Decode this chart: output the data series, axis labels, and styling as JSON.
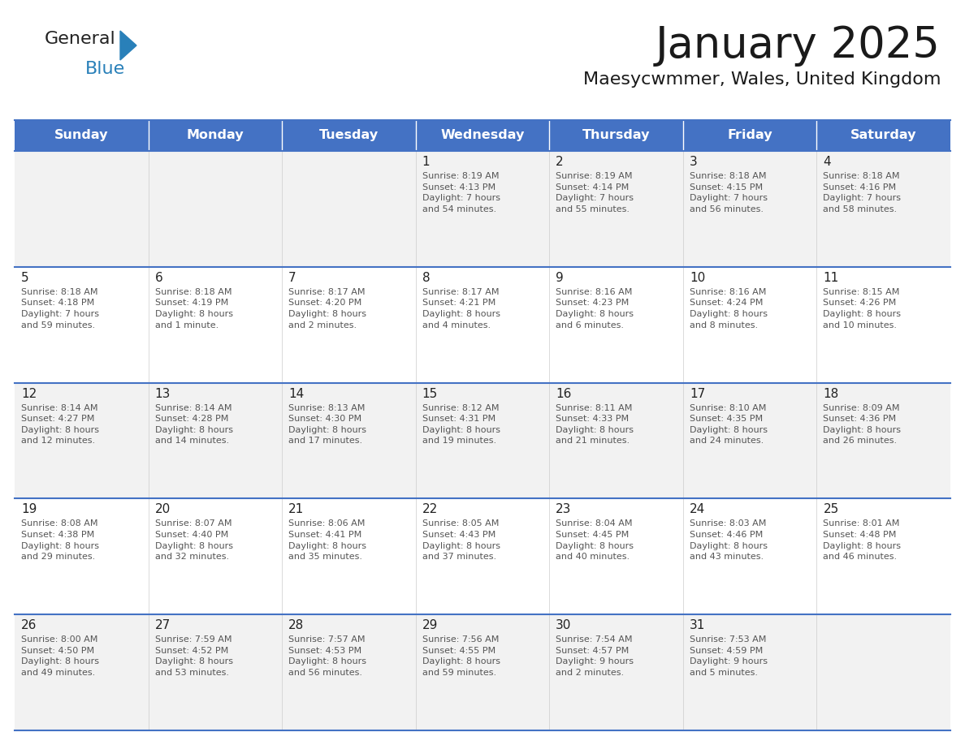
{
  "title": "January 2025",
  "subtitle": "Maesycwmmer, Wales, United Kingdom",
  "days_of_week": [
    "Sunday",
    "Monday",
    "Tuesday",
    "Wednesday",
    "Thursday",
    "Friday",
    "Saturday"
  ],
  "header_bg": "#4472C4",
  "header_text": "#FFFFFF",
  "cell_bg_row0": "#F2F2F2",
  "cell_bg_row1": "#FFFFFF",
  "cell_bg_row2": "#F2F2F2",
  "cell_bg_row3": "#FFFFFF",
  "cell_bg_row4": "#F2F2F2",
  "cell_line_color": "#4472C4",
  "title_color": "#1a1a1a",
  "subtitle_color": "#1a1a1a",
  "day_number_color": "#222222",
  "cell_text_color": "#555555",
  "logo_color_general": "#222222",
  "logo_color_blue": "#2980B9",
  "logo_triangle_color": "#2980B9",
  "calendar_data": [
    [
      null,
      null,
      null,
      {
        "day": 1,
        "sunrise": "8:19 AM",
        "sunset": "4:13 PM",
        "daylight": "7 hours\nand 54 minutes."
      },
      {
        "day": 2,
        "sunrise": "8:19 AM",
        "sunset": "4:14 PM",
        "daylight": "7 hours\nand 55 minutes."
      },
      {
        "day": 3,
        "sunrise": "8:18 AM",
        "sunset": "4:15 PM",
        "daylight": "7 hours\nand 56 minutes."
      },
      {
        "day": 4,
        "sunrise": "8:18 AM",
        "sunset": "4:16 PM",
        "daylight": "7 hours\nand 58 minutes."
      }
    ],
    [
      {
        "day": 5,
        "sunrise": "8:18 AM",
        "sunset": "4:18 PM",
        "daylight": "7 hours\nand 59 minutes."
      },
      {
        "day": 6,
        "sunrise": "8:18 AM",
        "sunset": "4:19 PM",
        "daylight": "8 hours\nand 1 minute."
      },
      {
        "day": 7,
        "sunrise": "8:17 AM",
        "sunset": "4:20 PM",
        "daylight": "8 hours\nand 2 minutes."
      },
      {
        "day": 8,
        "sunrise": "8:17 AM",
        "sunset": "4:21 PM",
        "daylight": "8 hours\nand 4 minutes."
      },
      {
        "day": 9,
        "sunrise": "8:16 AM",
        "sunset": "4:23 PM",
        "daylight": "8 hours\nand 6 minutes."
      },
      {
        "day": 10,
        "sunrise": "8:16 AM",
        "sunset": "4:24 PM",
        "daylight": "8 hours\nand 8 minutes."
      },
      {
        "day": 11,
        "sunrise": "8:15 AM",
        "sunset": "4:26 PM",
        "daylight": "8 hours\nand 10 minutes."
      }
    ],
    [
      {
        "day": 12,
        "sunrise": "8:14 AM",
        "sunset": "4:27 PM",
        "daylight": "8 hours\nand 12 minutes."
      },
      {
        "day": 13,
        "sunrise": "8:14 AM",
        "sunset": "4:28 PM",
        "daylight": "8 hours\nand 14 minutes."
      },
      {
        "day": 14,
        "sunrise": "8:13 AM",
        "sunset": "4:30 PM",
        "daylight": "8 hours\nand 17 minutes."
      },
      {
        "day": 15,
        "sunrise": "8:12 AM",
        "sunset": "4:31 PM",
        "daylight": "8 hours\nand 19 minutes."
      },
      {
        "day": 16,
        "sunrise": "8:11 AM",
        "sunset": "4:33 PM",
        "daylight": "8 hours\nand 21 minutes."
      },
      {
        "day": 17,
        "sunrise": "8:10 AM",
        "sunset": "4:35 PM",
        "daylight": "8 hours\nand 24 minutes."
      },
      {
        "day": 18,
        "sunrise": "8:09 AM",
        "sunset": "4:36 PM",
        "daylight": "8 hours\nand 26 minutes."
      }
    ],
    [
      {
        "day": 19,
        "sunrise": "8:08 AM",
        "sunset": "4:38 PM",
        "daylight": "8 hours\nand 29 minutes."
      },
      {
        "day": 20,
        "sunrise": "8:07 AM",
        "sunset": "4:40 PM",
        "daylight": "8 hours\nand 32 minutes."
      },
      {
        "day": 21,
        "sunrise": "8:06 AM",
        "sunset": "4:41 PM",
        "daylight": "8 hours\nand 35 minutes."
      },
      {
        "day": 22,
        "sunrise": "8:05 AM",
        "sunset": "4:43 PM",
        "daylight": "8 hours\nand 37 minutes."
      },
      {
        "day": 23,
        "sunrise": "8:04 AM",
        "sunset": "4:45 PM",
        "daylight": "8 hours\nand 40 minutes."
      },
      {
        "day": 24,
        "sunrise": "8:03 AM",
        "sunset": "4:46 PM",
        "daylight": "8 hours\nand 43 minutes."
      },
      {
        "day": 25,
        "sunrise": "8:01 AM",
        "sunset": "4:48 PM",
        "daylight": "8 hours\nand 46 minutes."
      }
    ],
    [
      {
        "day": 26,
        "sunrise": "8:00 AM",
        "sunset": "4:50 PM",
        "daylight": "8 hours\nand 49 minutes."
      },
      {
        "day": 27,
        "sunrise": "7:59 AM",
        "sunset": "4:52 PM",
        "daylight": "8 hours\nand 53 minutes."
      },
      {
        "day": 28,
        "sunrise": "7:57 AM",
        "sunset": "4:53 PM",
        "daylight": "8 hours\nand 56 minutes."
      },
      {
        "day": 29,
        "sunrise": "7:56 AM",
        "sunset": "4:55 PM",
        "daylight": "8 hours\nand 59 minutes."
      },
      {
        "day": 30,
        "sunrise": "7:54 AM",
        "sunset": "4:57 PM",
        "daylight": "9 hours\nand 2 minutes."
      },
      {
        "day": 31,
        "sunrise": "7:53 AM",
        "sunset": "4:59 PM",
        "daylight": "9 hours\nand 5 minutes."
      },
      null
    ]
  ]
}
